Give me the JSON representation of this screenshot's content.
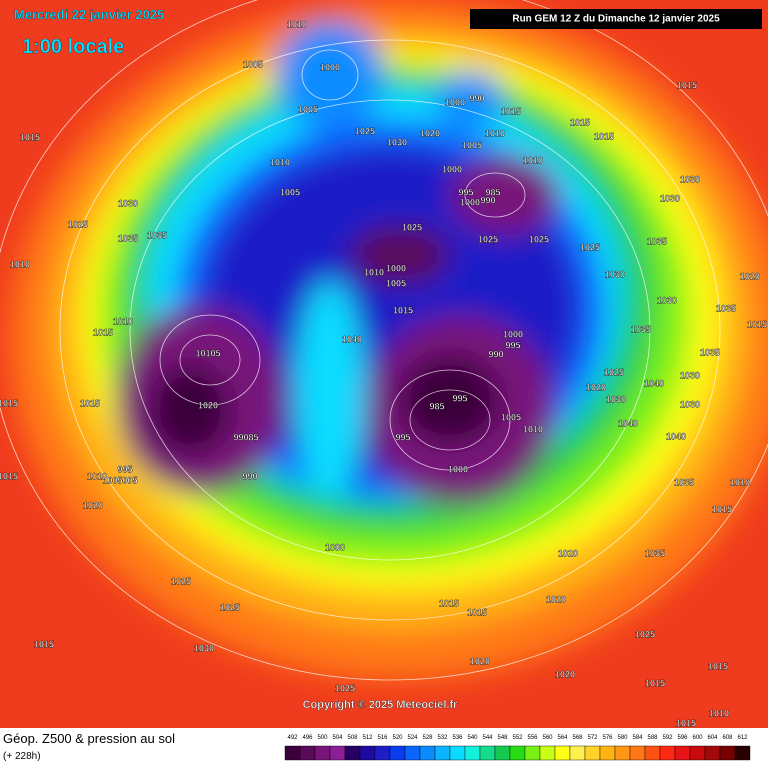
{
  "header": {
    "date": "Mercredi 22 janvier 2025",
    "time": "1:00 locale",
    "run": "Run GEM 12 Z du Dimanche 12 janvier 2025"
  },
  "map": {
    "pressure_labels": [
      "1010",
      "1005",
      "1000",
      "1005",
      "1025",
      "1030",
      "1020",
      "1000",
      "990",
      "1015",
      "1010",
      "1005",
      "1015",
      "1015",
      "1015",
      "1015",
      "1010",
      "1005",
      "1000",
      "1010",
      "995",
      "985",
      "1000",
      "990",
      "1030",
      "1030",
      "1030",
      "1025",
      "1035",
      "1035",
      "1025",
      "1025",
      "1025",
      "1025",
      "1035",
      "1010",
      "1000",
      "1010",
      "1005",
      "1015",
      "1030",
      "1020",
      "1030",
      "1035",
      "1015",
      "1010",
      "1015",
      "1040",
      "1000",
      "995",
      "990",
      "10105",
      "1035",
      "1035",
      "1030",
      "1020",
      "1025",
      "1040",
      "1030",
      "1015",
      "1020",
      "1015",
      "985",
      "995",
      "1005",
      "1010",
      "1030",
      "995",
      "1000",
      "1040",
      "1040",
      "99085",
      "990",
      "1035",
      "1010",
      "995",
      "1005005",
      "1010",
      "1015",
      "1020",
      "1015",
      "1000",
      "1020",
      "1035",
      "1025",
      "1020",
      "1025",
      "1015",
      "1015",
      "1020",
      "1025",
      "1015",
      "1030",
      "1020",
      "1015",
      "1015",
      "1025",
      "1015",
      "1010"
    ],
    "copyright": "Copyright © 2025 Meteociel.fr"
  },
  "footer": {
    "product": "Géop. Z500 & pression au sol",
    "lead": "(+ 228h)"
  },
  "scale": {
    "levels": [
      492,
      496,
      500,
      504,
      508,
      512,
      516,
      520,
      524,
      528,
      532,
      536,
      540,
      544,
      548,
      552,
      556,
      560,
      564,
      568,
      572,
      576,
      580,
      584,
      588,
      592,
      596,
      600,
      604,
      608,
      612
    ],
    "colors": [
      "#3b003b",
      "#5a0a5a",
      "#78147a",
      "#8c1e96",
      "#280064",
      "#1e0aa0",
      "#1e1ec8",
      "#0a3cf0",
      "#0a64ff",
      "#0a8cff",
      "#0ab4ff",
      "#0adcff",
      "#14f0dc",
      "#14dc8c",
      "#14c850",
      "#28dc14",
      "#78f014",
      "#c8ff14",
      "#ffff14",
      "#fff050",
      "#ffd228",
      "#ffb414",
      "#ff9614",
      "#ff7814",
      "#ff5014",
      "#ff2814",
      "#e61414",
      "#c80a0a",
      "#a00a0a",
      "#780000",
      "#280000"
    ]
  }
}
